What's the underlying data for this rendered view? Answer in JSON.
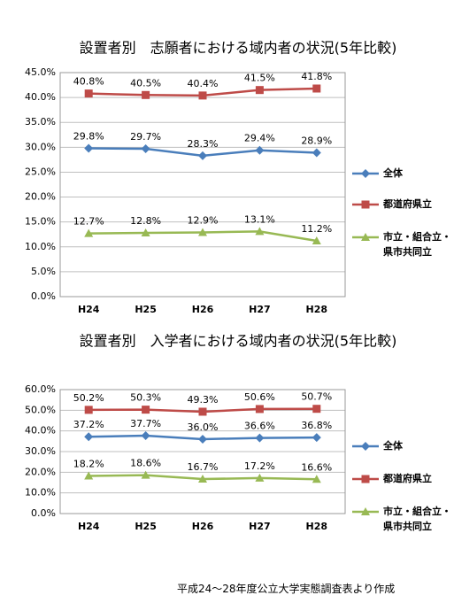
{
  "chart_data": [
    {
      "type": "line",
      "title": "設置者別　志願者における域内者の状況(5年比較)",
      "categories": [
        "H24",
        "H25",
        "H26",
        "H27",
        "H28"
      ],
      "ylim": [
        0,
        45
      ],
      "yticks": [
        {
          "value": 0,
          "label": "0.0%"
        },
        {
          "value": 5,
          "label": "5.0%"
        },
        {
          "value": 10,
          "label": "10.0%"
        },
        {
          "value": 15,
          "label": "15.0%"
        },
        {
          "value": 20,
          "label": "20.0%"
        },
        {
          "value": 25,
          "label": "25.0%"
        },
        {
          "value": 30,
          "label": "30.0%"
        },
        {
          "value": 35,
          "label": "35.0%"
        },
        {
          "value": 40,
          "label": "40.0%"
        },
        {
          "value": 45,
          "label": "45.0%"
        }
      ],
      "grid": true,
      "legend": "right",
      "series": [
        {
          "name": "全体",
          "color": "#4a7ebb",
          "marker": "diamond",
          "values": [
            29.8,
            29.7,
            28.3,
            29.4,
            28.9
          ],
          "value_labels": [
            "29.8%",
            "29.7%",
            "28.3%",
            "29.4%",
            "28.9%"
          ]
        },
        {
          "name": "都道府県立",
          "color": "#be4b48",
          "marker": "square",
          "values": [
            40.8,
            40.5,
            40.4,
            41.5,
            41.8
          ],
          "value_labels": [
            "40.8%",
            "40.5%",
            "40.4%",
            "41.5%",
            "41.8%"
          ]
        },
        {
          "name": "市立・組合立・県市共同立",
          "color": "#98b954",
          "marker": "triangle",
          "values": [
            12.7,
            12.8,
            12.9,
            13.1,
            11.2
          ],
          "value_labels": [
            "12.7%",
            "12.8%",
            "12.9%",
            "13.1%",
            "11.2%"
          ]
        }
      ]
    },
    {
      "type": "line",
      "title": "設置者別　入学者における域内者の状況(5年比較)",
      "categories": [
        "H24",
        "H25",
        "H26",
        "H27",
        "H28"
      ],
      "ylim": [
        0,
        60
      ],
      "yticks": [
        {
          "value": 0,
          "label": "0.0%"
        },
        {
          "value": 10,
          "label": "10.0%"
        },
        {
          "value": 20,
          "label": "20.0%"
        },
        {
          "value": 30,
          "label": "30.0%"
        },
        {
          "value": 40,
          "label": "40.0%"
        },
        {
          "value": 50,
          "label": "50.0%"
        },
        {
          "value": 60,
          "label": "60.0%"
        }
      ],
      "grid": true,
      "legend": "right",
      "series": [
        {
          "name": "全体",
          "color": "#4a7ebb",
          "marker": "diamond",
          "values": [
            37.2,
            37.7,
            36.0,
            36.6,
            36.8
          ],
          "value_labels": [
            "37.2%",
            "37.7%",
            "36.0%",
            "36.6%",
            "36.8%"
          ]
        },
        {
          "name": "都道府県立",
          "color": "#be4b48",
          "marker": "square",
          "values": [
            50.2,
            50.3,
            49.3,
            50.6,
            50.7
          ],
          "value_labels": [
            "50.2%",
            "50.3%",
            "49.3%",
            "50.6%",
            "50.7%"
          ]
        },
        {
          "name": "市立・組合立・県市共同立",
          "color": "#98b954",
          "marker": "triangle",
          "values": [
            18.2,
            18.6,
            16.7,
            17.2,
            16.6
          ],
          "value_labels": [
            "18.2%",
            "18.6%",
            "16.7%",
            "17.2%",
            "16.6%"
          ]
        }
      ]
    }
  ],
  "source": "平成24～28年度公立大学実態調査表より作成"
}
